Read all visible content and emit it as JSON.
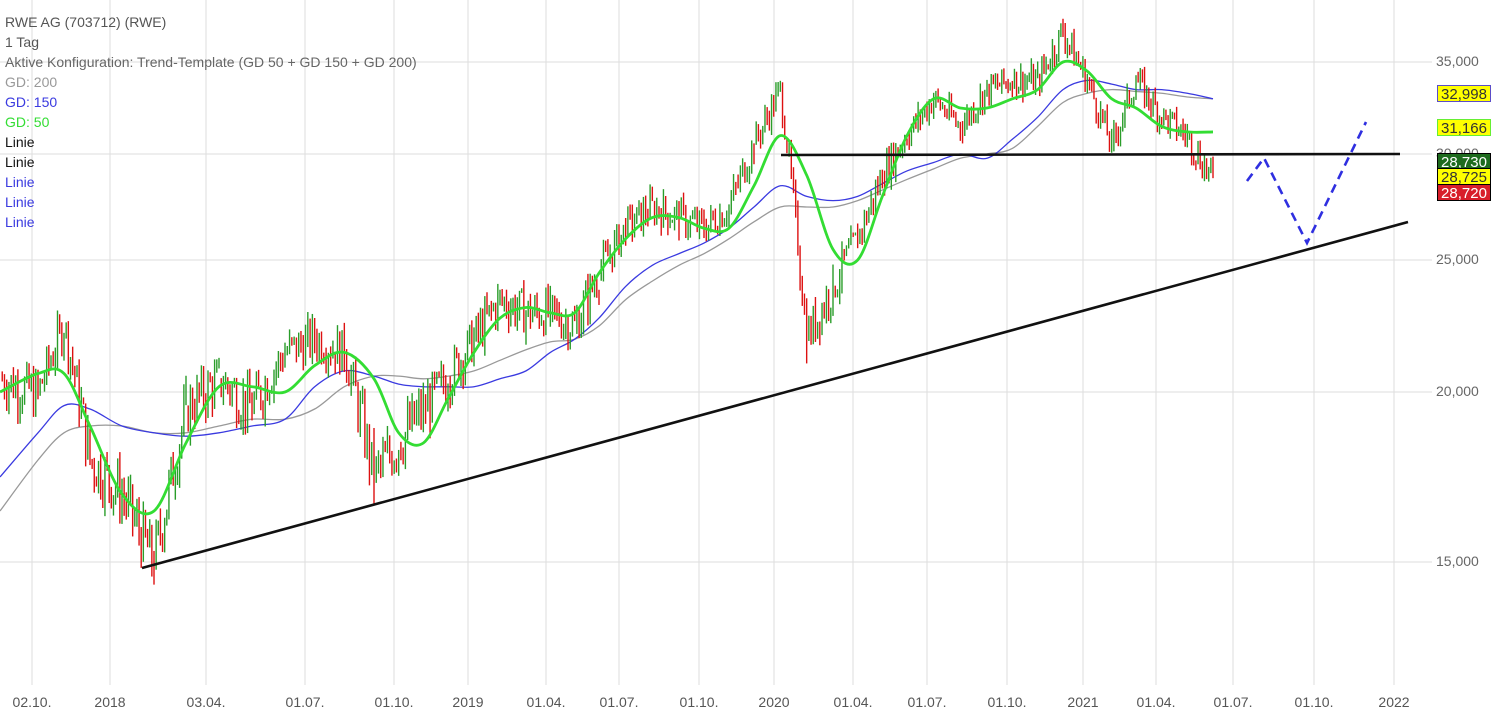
{
  "header": {
    "title": "RWE AG (703712) (RWE)",
    "interval": "1 Tag",
    "config": "Aktive Konfiguration: Trend-Template (GD 50 + GD 150 + GD 200)"
  },
  "legend": [
    {
      "label": "GD: 200",
      "color": "#999999"
    },
    {
      "label": "GD: 150",
      "color": "#3a3ae0"
    },
    {
      "label": "GD: 50",
      "color": "#33dd33"
    },
    {
      "label": "Linie",
      "color": "#111111"
    },
    {
      "label": "Linie",
      "color": "#111111"
    },
    {
      "label": "Linie",
      "color": "#3a3ae0"
    },
    {
      "label": "Linie",
      "color": "#3a3ae0"
    },
    {
      "label": "Linie",
      "color": "#3a3ae0"
    }
  ],
  "price_badges": [
    {
      "value": "32,998",
      "bg": "#ffff00",
      "border": "#5b4dc8",
      "color": "#333333",
      "y": 85
    },
    {
      "value": "31,166",
      "bg": "#ffff00",
      "border": "#66ee33",
      "color": "#333333",
      "y": 119
    },
    {
      "value": "28,730",
      "bg": "#1e6b1e",
      "border": "#000000",
      "color": "#ffffff",
      "y": 153
    },
    {
      "value": "28,725",
      "bg": "#ffff00",
      "border": "#000000",
      "color": "#333333",
      "y": 168
    },
    {
      "value": "28,720",
      "bg": "#d81e2a",
      "border": "#000000",
      "color": "#ffffff",
      "y": 184
    }
  ],
  "chart_data": {
    "type": "line",
    "title": "RWE AG (703712) (RWE)",
    "subtitle": "1 Tag",
    "xlabel": "",
    "ylabel": "",
    "y_ticks": [
      "35,000",
      "30,000",
      "25,000",
      "20,000",
      "15,000"
    ],
    "y_tick_values": [
      35,
      30,
      25,
      20,
      15
    ],
    "ylim": [
      13,
      38
    ],
    "x_ticks": [
      "02.10.",
      "2018",
      "03.04.",
      "01.07.",
      "01.10.",
      "2019",
      "01.04.",
      "01.07.",
      "01.10.",
      "2020",
      "01.04.",
      "01.07.",
      "01.10.",
      "2021",
      "01.04.",
      "01.07.",
      "01.10.",
      "2022"
    ],
    "grid": true,
    "legend_position": "top-left",
    "last_values": {
      "GD 200": 32.998,
      "GD 50": 31.166,
      "high": 28.73,
      "close": 28.725,
      "low": 28.72
    },
    "series": [
      {
        "name": "Kurs",
        "type": "candles",
        "up_color": "#2a9d2a",
        "down_color": "#dd1111",
        "x": [
          "2017-10",
          "2017-11",
          "2017-12",
          "2018-01",
          "2018-02",
          "2018-03",
          "2018-04",
          "2018-05",
          "2018-06",
          "2018-07",
          "2018-08",
          "2018-09",
          "2018-10",
          "2018-11",
          "2018-12",
          "2019-01",
          "2019-02",
          "2019-03",
          "2019-04",
          "2019-05",
          "2019-06",
          "2019-07",
          "2019-08",
          "2019-09",
          "2019-10",
          "2019-11",
          "2019-12",
          "2020-01",
          "2020-02",
          "2020-03",
          "2020-04",
          "2020-05",
          "2020-06",
          "2020-07",
          "2020-08",
          "2020-09",
          "2020-10",
          "2020-11",
          "2020-12",
          "2021-01",
          "2021-02",
          "2021-03",
          "2021-04",
          "2021-05",
          "2021-06",
          "2021-07"
        ],
        "values": [
          20.5,
          20.0,
          22.5,
          18.0,
          17.0,
          15.0,
          19.5,
          20.5,
          19.5,
          21.5,
          22.0,
          21.5,
          17.5,
          18.5,
          19.5,
          20.5,
          22.0,
          23.5,
          23.0,
          23.0,
          22.5,
          24.5,
          26.5,
          27.5,
          27.0,
          26.5,
          27.5,
          30.5,
          33.5,
          22.0,
          24.0,
          26.0,
          29.0,
          31.0,
          33.0,
          31.5,
          33.5,
          34.0,
          34.0,
          36.5,
          34.0,
          30.5,
          34.0,
          32.0,
          31.0,
          28.7
        ]
      },
      {
        "name": "GD: 50",
        "color": "#33dd33",
        "values": [
          20.0,
          20.7,
          20.7,
          19.0,
          17.0,
          16.5,
          18.5,
          20.2,
          20.2,
          20.0,
          21.0,
          21.5,
          20.5,
          18.8,
          18.5,
          19.8,
          21.5,
          22.8,
          23.2,
          23.0,
          23.0,
          24.5,
          26.0,
          27.0,
          27.0,
          26.5,
          26.5,
          28.5,
          31.0,
          29.0,
          25.5,
          25.0,
          28.0,
          31.0,
          33.0,
          32.5,
          32.5,
          33.0,
          33.5,
          35.0,
          34.5,
          33.0,
          32.5,
          31.5,
          31.2,
          31.2
        ]
      },
      {
        "name": "GD: 150",
        "color": "#3a3ae0",
        "values": [
          17.5,
          18.8,
          19.6,
          19.5,
          19.0,
          18.8,
          18.7,
          18.8,
          19.0,
          19.2,
          20.2,
          20.8,
          20.6,
          20.3,
          20.2,
          20.2,
          20.2,
          20.5,
          20.8,
          21.5,
          22.0,
          22.8,
          24.0,
          24.8,
          25.3,
          25.8,
          26.5,
          27.5,
          28.5,
          28.0,
          27.8,
          28.0,
          28.6,
          29.2,
          29.6,
          30.0,
          29.8,
          30.8,
          32.0,
          33.5,
          34.0,
          33.8,
          33.5,
          33.5,
          33.3,
          33.0
        ]
      },
      {
        "name": "GD: 200",
        "color": "#999999",
        "values": [
          16.5,
          18.0,
          18.8,
          19.0,
          19.0,
          18.8,
          18.8,
          19.0,
          19.2,
          19.2,
          19.5,
          20.2,
          20.6,
          20.6,
          20.5,
          20.6,
          20.8,
          21.2,
          21.6,
          21.9,
          22.0,
          22.5,
          23.5,
          24.2,
          24.8,
          25.3,
          26.0,
          26.8,
          27.5,
          27.5,
          27.5,
          27.8,
          28.3,
          28.8,
          29.3,
          29.8,
          30.0,
          30.3,
          31.5,
          32.8,
          33.3,
          33.5,
          33.4,
          33.3,
          33.1,
          33.0
        ]
      }
    ],
    "annotations": [
      {
        "type": "trendline",
        "label": "Linie",
        "color": "#111111",
        "from": {
          "date": "2018-03",
          "value": 14.8
        },
        "to": {
          "date": "2021-12",
          "value": 26.3
        }
      },
      {
        "type": "horizontal",
        "label": "Linie",
        "color": "#111111",
        "value": 30.0,
        "from": "2020-01",
        "to": "2021-12"
      },
      {
        "type": "dashed",
        "label": "Linie",
        "color": "#3a3ae0",
        "from": {
          "date": "2021-07",
          "value": 28.7
        },
        "to": {
          "date": "2021-08",
          "value": 29.8
        }
      },
      {
        "type": "dashed",
        "label": "Linie",
        "color": "#3a3ae0",
        "from": {
          "date": "2021-08",
          "value": 29.8
        },
        "to": {
          "date": "2021-09",
          "value": 25.6
        }
      },
      {
        "type": "dashed",
        "label": "Linie",
        "color": "#3a3ae0",
        "from": {
          "date": "2021-09",
          "value": 25.6
        },
        "to": {
          "date": "2021-11",
          "value": 31.6
        }
      }
    ]
  }
}
